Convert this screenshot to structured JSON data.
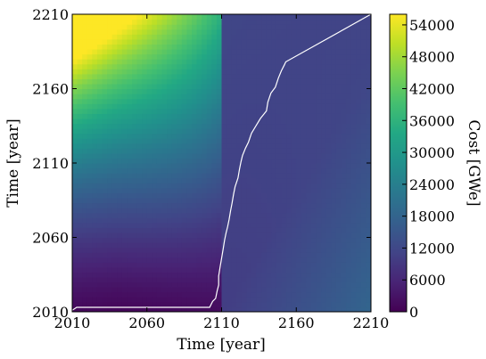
{
  "chart_data": {
    "type": "heatmap",
    "title": "",
    "xlabel": "Time [year]",
    "ylabel": "Time [year]",
    "xlim": [
      2010,
      2210
    ],
    "ylim": [
      2010,
      2210
    ],
    "xticks": [
      "2010",
      "2060",
      "2110",
      "2160",
      "2210"
    ],
    "yticks": [
      "2010",
      "2060",
      "2110",
      "2160",
      "2210"
    ],
    "colormap": "viridis",
    "colorbar": {
      "label": "Cost [GWe]",
      "range": [
        0,
        56000
      ],
      "ticks": [
        "0",
        "6000",
        "12000",
        "18000",
        "24000",
        "30000",
        "36000",
        "42000",
        "48000",
        "54000"
      ]
    },
    "grid": false,
    "optimal_path": {
      "color": "#ffffff",
      "x": [
        2010,
        2013,
        2102,
        2104,
        2106,
        2107,
        2108,
        2108,
        2109,
        2110,
        2111,
        2112,
        2113,
        2114,
        2115,
        2116,
        2117,
        2118,
        2119,
        2121,
        2122,
        2123,
        2124,
        2126,
        2128,
        2130,
        2133,
        2136,
        2140,
        2141,
        2143,
        2146,
        2148,
        2150,
        2152,
        2153,
        2210
      ],
      "y": [
        2011,
        2013,
        2013,
        2017,
        2019,
        2024,
        2028,
        2034,
        2040,
        2046,
        2052,
        2058,
        2063,
        2067,
        2072,
        2078,
        2083,
        2089,
        2094,
        2100,
        2106,
        2111,
        2115,
        2120,
        2124,
        2130,
        2135,
        2140,
        2145,
        2151,
        2157,
        2161,
        2167,
        2172,
        2176,
        2178,
        2210
      ]
    }
  }
}
